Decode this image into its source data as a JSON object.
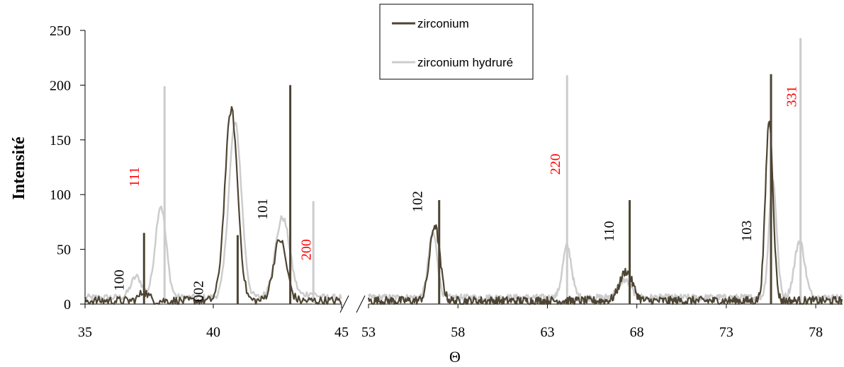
{
  "chart_data": {
    "type": "line",
    "title": "",
    "xlabel": "Θ",
    "ylabel": "Intensité",
    "ylim": [
      0,
      250
    ],
    "yticks": [
      0,
      50,
      100,
      150,
      200,
      250
    ],
    "panels": [
      {
        "xlim": [
          35,
          45
        ],
        "xticks": [
          35,
          40,
          45
        ]
      },
      {
        "xlim": [
          53,
          79.5
        ],
        "xticks": [
          53,
          58,
          63,
          68,
          73,
          78
        ]
      }
    ],
    "axis_break": true,
    "legend_position": "top-center",
    "series": [
      {
        "name": "zirconium",
        "color": "#4d4433",
        "peaks": [
          {
            "x": 37.3,
            "y": 11,
            "w": 0.25
          },
          {
            "x": 40.7,
            "y": 178,
            "w": 0.35
          },
          {
            "x": 42.6,
            "y": 59,
            "w": 0.35
          },
          {
            "x": 56.7,
            "y": 72,
            "w": 0.4
          },
          {
            "x": 67.4,
            "y": 30,
            "w": 0.5
          },
          {
            "x": 75.4,
            "y": 168,
            "w": 0.3
          }
        ],
        "sticks": [
          {
            "x": 37.3,
            "y": 65
          },
          {
            "x": 40.95,
            "y": 63
          },
          {
            "x": 43.0,
            "y": 200
          },
          {
            "x": 56.95,
            "y": 95
          },
          {
            "x": 67.6,
            "y": 95
          },
          {
            "x": 75.5,
            "y": 210
          }
        ]
      },
      {
        "name": "zirconium hydruré",
        "color": "#cccccc",
        "peaks": [
          {
            "x": 37.0,
            "y": 25,
            "w": 0.3
          },
          {
            "x": 37.95,
            "y": 90,
            "w": 0.3
          },
          {
            "x": 40.85,
            "y": 165,
            "w": 0.35
          },
          {
            "x": 42.7,
            "y": 79,
            "w": 0.4
          },
          {
            "x": 43.8,
            "y": 10,
            "w": 0.3
          },
          {
            "x": 56.6,
            "y": 65,
            "w": 0.35
          },
          {
            "x": 64.1,
            "y": 53,
            "w": 0.35
          },
          {
            "x": 67.3,
            "y": 22,
            "w": 0.5
          },
          {
            "x": 75.6,
            "y": 113,
            "w": 0.3
          },
          {
            "x": 77.1,
            "y": 58,
            "w": 0.4
          }
        ],
        "sticks": [
          {
            "x": 38.1,
            "y": 199
          },
          {
            "x": 43.9,
            "y": 94
          },
          {
            "x": 64.1,
            "y": 209
          },
          {
            "x": 77.15,
            "y": 243
          }
        ]
      }
    ],
    "annotations": [
      {
        "text": "100",
        "x": 36.5,
        "y": 12,
        "color": "#000000"
      },
      {
        "text": "002",
        "x": 39.6,
        "y": 2,
        "color": "#000000"
      },
      {
        "text": "101",
        "x": 42.1,
        "y": 77,
        "color": "#000000"
      },
      {
        "text": "111",
        "x": 37.1,
        "y": 107,
        "color": "#ff0000"
      },
      {
        "text": "200",
        "x": 43.8,
        "y": 40,
        "color": "#ff0000"
      },
      {
        "text": "102",
        "x": 56.0,
        "y": 84,
        "color": "#000000"
      },
      {
        "text": "220",
        "x": 63.7,
        "y": 118,
        "color": "#ff0000"
      },
      {
        "text": "110",
        "x": 66.7,
        "y": 57,
        "color": "#000000"
      },
      {
        "text": "103",
        "x": 74.4,
        "y": 57,
        "color": "#000000"
      },
      {
        "text": "331",
        "x": 76.9,
        "y": 180,
        "color": "#ff0000"
      }
    ]
  }
}
